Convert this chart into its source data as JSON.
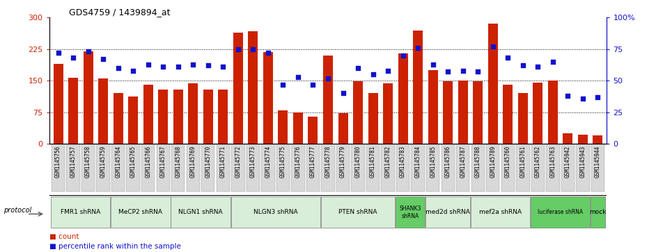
{
  "title": "GDS4759 / 1439894_at",
  "samples": [
    "GSM1145756",
    "GSM1145757",
    "GSM1145758",
    "GSM1145759",
    "GSM1145764",
    "GSM1145765",
    "GSM1145766",
    "GSM1145767",
    "GSM1145768",
    "GSM1145769",
    "GSM1145770",
    "GSM1145771",
    "GSM1145772",
    "GSM1145773",
    "GSM1145774",
    "GSM1145775",
    "GSM1145776",
    "GSM1145777",
    "GSM1145778",
    "GSM1145779",
    "GSM1145780",
    "GSM1145781",
    "GSM1145782",
    "GSM1145783",
    "GSM1145784",
    "GSM1145785",
    "GSM1145786",
    "GSM1145787",
    "GSM1145788",
    "GSM1145789",
    "GSM1145760",
    "GSM1145761",
    "GSM1145762",
    "GSM1145763",
    "GSM1145942",
    "GSM1145943",
    "GSM1145944"
  ],
  "counts": [
    190,
    157,
    220,
    155,
    120,
    112,
    140,
    128,
    128,
    143,
    128,
    128,
    265,
    268,
    218,
    80,
    75,
    65,
    210,
    73,
    148,
    120,
    143,
    215,
    270,
    175,
    148,
    150,
    148,
    285,
    140,
    120,
    145,
    150,
    25,
    22,
    20
  ],
  "percentiles": [
    72,
    68,
    73,
    67,
    60,
    58,
    63,
    61,
    61,
    63,
    62,
    61,
    75,
    75,
    72,
    47,
    53,
    47,
    52,
    40,
    60,
    55,
    58,
    70,
    76,
    63,
    57,
    58,
    57,
    77,
    68,
    62,
    61,
    65,
    38,
    36,
    37
  ],
  "protocols": [
    {
      "label": "FMR1 shRNA",
      "start": 0,
      "end": 4,
      "color": "#d8eed8"
    },
    {
      "label": "MeCP2 shRNA",
      "start": 4,
      "end": 8,
      "color": "#d8eed8"
    },
    {
      "label": "NLGN1 shRNA",
      "start": 8,
      "end": 12,
      "color": "#d8eed8"
    },
    {
      "label": "NLGN3 shRNA",
      "start": 12,
      "end": 18,
      "color": "#d8eed8"
    },
    {
      "label": "PTEN shRNA",
      "start": 18,
      "end": 23,
      "color": "#d8eed8"
    },
    {
      "label": "SHANK3\nshRNA",
      "start": 23,
      "end": 25,
      "color": "#66cc66"
    },
    {
      "label": "med2d shRNA",
      "start": 25,
      "end": 28,
      "color": "#d8eed8"
    },
    {
      "label": "mef2a shRNA",
      "start": 28,
      "end": 32,
      "color": "#d8eed8"
    },
    {
      "label": "luciferase shRNA",
      "start": 32,
      "end": 36,
      "color": "#66cc66"
    },
    {
      "label": "mock",
      "start": 36,
      "end": 37,
      "color": "#66cc66"
    }
  ],
  "bar_color": "#CC2200",
  "dot_color": "#1111CC",
  "ylim_left": [
    0,
    300
  ],
  "ylim_right": [
    0,
    100
  ],
  "yticks_left": [
    0,
    75,
    150,
    225,
    300
  ],
  "yticks_right": [
    0,
    25,
    50,
    75,
    100
  ],
  "xlim": [
    -0.6,
    36.6
  ]
}
